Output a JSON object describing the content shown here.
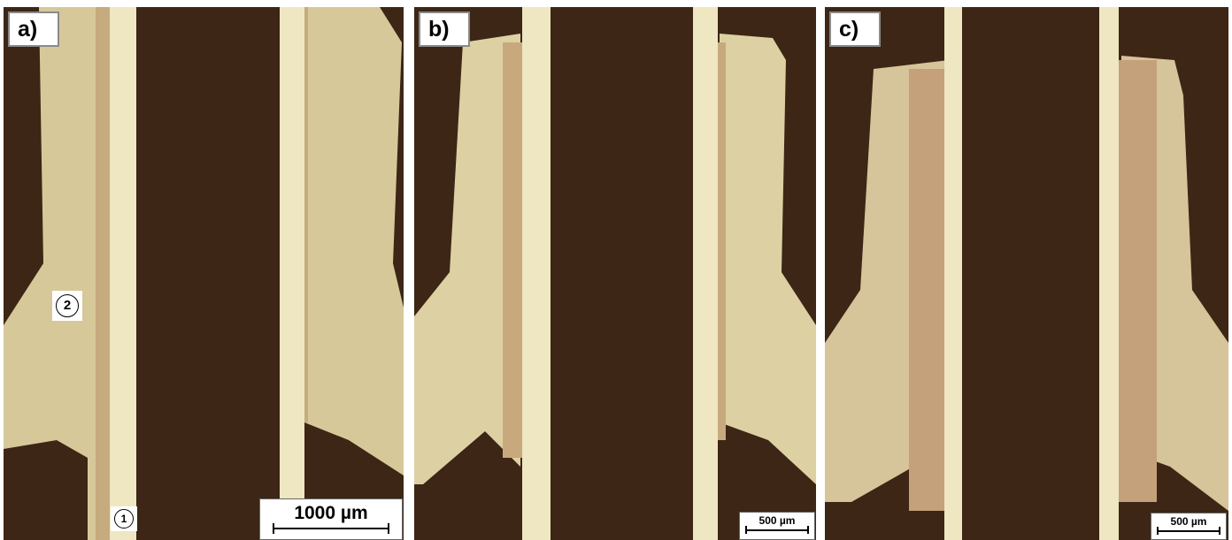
{
  "panels": [
    {
      "label": "a)",
      "scale_bar": "1000 µm",
      "markers": [
        "1",
        "2"
      ]
    },
    {
      "label": "b)",
      "scale_bar": "500 µm"
    },
    {
      "label": "c)",
      "scale_bar": "500 µm"
    }
  ],
  "colors": {
    "background_resin": "#3d2616",
    "insert_alloy": "#ddd1a4",
    "tube_wall": "#efe6c2",
    "joint_phase": "#c4a17a",
    "panel_label_border": "#8a8a8a"
  }
}
